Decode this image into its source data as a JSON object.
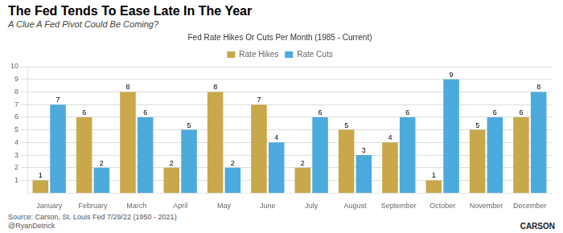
{
  "chart_data": {
    "type": "bar",
    "title": "The Fed Tends To Ease Late In The Year",
    "subtitle": "A Clue A Fed Pivot Could Be Coming?",
    "chart_title": "Fed Rate Hikes Or Cuts Per Month (1985 - Current)",
    "source": "Source: Carson, St. Louis Fed 7/29/22 (1950 - 2021)",
    "annotations": [
      "@RyanDetrick",
      "CARSON"
    ],
    "categories": [
      "January",
      "February",
      "March",
      "April",
      "May",
      "June",
      "July",
      "August",
      "September",
      "October",
      "November",
      "December"
    ],
    "series": [
      {
        "name": "Rate Hikes",
        "color": "#C8A84B",
        "values": [
          1,
          6,
          8,
          2,
          8,
          7,
          2,
          5,
          4,
          1,
          5,
          6
        ]
      },
      {
        "name": "Rate Cuts",
        "color": "#4DAADC",
        "values": [
          7,
          2,
          6,
          5,
          2,
          4,
          6,
          3,
          6,
          9,
          6,
          8
        ]
      }
    ],
    "ylim": [
      0,
      10
    ],
    "yticks": [
      1,
      2,
      3,
      4,
      5,
      6,
      7,
      8,
      9,
      10
    ],
    "grid": true,
    "legend": "top",
    "data_labels": true
  }
}
